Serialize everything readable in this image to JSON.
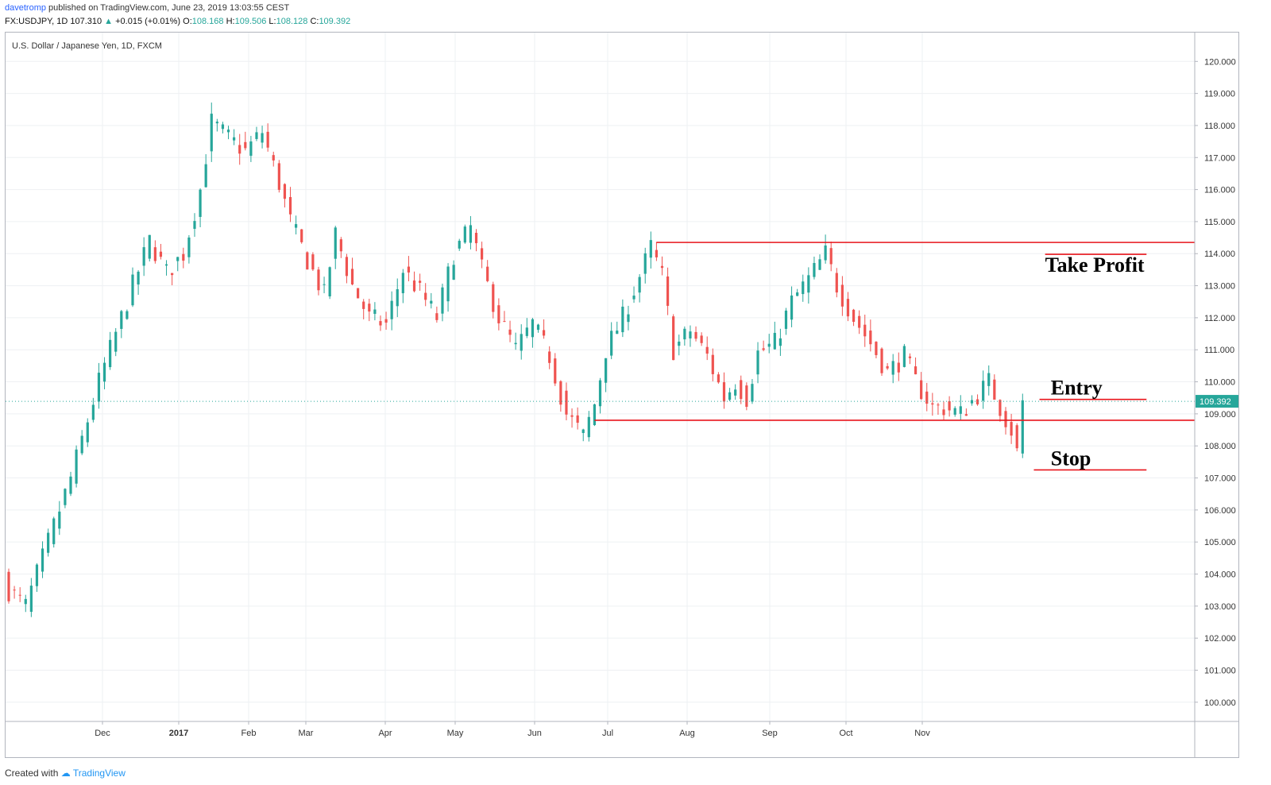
{
  "header": {
    "user": "davetromp",
    "published": "published on TradingView.com, June 23, 2019 13:03:55 CEST",
    "symbol": "FX:USDJPY, 1D",
    "last": "107.310",
    "change": "+0.015 (+0.01%)",
    "open_label": "O:",
    "open": "108.168",
    "high_label": "H:",
    "high": "109.506",
    "low_label": "L:",
    "low": "108.128",
    "close_label": "C:",
    "close": "109.392"
  },
  "footer": {
    "created_with": "Created with",
    "brand": "TradingView"
  },
  "colors": {
    "up": "#26a69a",
    "down": "#ef5350",
    "annotation_line": "#e8141b",
    "grid": "#eef0f3",
    "price_tag": "#26a69a"
  },
  "chart_data": {
    "type": "candlestick",
    "title": "U.S. Dollar / Japanese Yen, 1D, FXCM",
    "ylim": [
      99.4,
      120.9
    ],
    "y_ticks": [
      "120.000",
      "119.000",
      "118.000",
      "117.000",
      "116.000",
      "115.000",
      "114.000",
      "113.000",
      "112.000",
      "111.000",
      "110.000",
      "109.000",
      "108.000",
      "107.000",
      "106.000",
      "105.000",
      "104.000",
      "103.000",
      "102.000",
      "101.000",
      "100.000"
    ],
    "x_ticks": [
      "Dec",
      "2017",
      "Feb",
      "Mar",
      "Apr",
      "May",
      "Jun",
      "Jul",
      "Aug",
      "Sep",
      "Oct",
      "Nov"
    ],
    "current_price_label": "109.392",
    "current_price": 109.392,
    "close_path": [
      {
        "idx": 0,
        "close": 103.5
      },
      {
        "idx": 3,
        "close": 103.0
      },
      {
        "idx": 5,
        "close": 104.0
      },
      {
        "idx": 8,
        "close": 105.5
      },
      {
        "idx": 11,
        "close": 107.0
      },
      {
        "idx": 13,
        "close": 108.2
      },
      {
        "idx": 16,
        "close": 110.0
      },
      {
        "idx": 19,
        "close": 111.5
      },
      {
        "idx": 22,
        "close": 113.0
      },
      {
        "idx": 25,
        "close": 114.4
      },
      {
        "idx": 28,
        "close": 113.4
      },
      {
        "idx": 31,
        "close": 114.0
      },
      {
        "idx": 34,
        "close": 116.0
      },
      {
        "idx": 36,
        "close": 118.1
      },
      {
        "idx": 39,
        "close": 117.6
      },
      {
        "idx": 42,
        "close": 117.2
      },
      {
        "idx": 45,
        "close": 117.8
      },
      {
        "idx": 48,
        "close": 116.2
      },
      {
        "idx": 50,
        "close": 115.0
      },
      {
        "idx": 53,
        "close": 113.8
      },
      {
        "idx": 56,
        "close": 112.7
      },
      {
        "idx": 58,
        "close": 114.6
      },
      {
        "idx": 61,
        "close": 113.0
      },
      {
        "idx": 64,
        "close": 112.0
      },
      {
        "idx": 67,
        "close": 111.8
      },
      {
        "idx": 70,
        "close": 113.5
      },
      {
        "idx": 73,
        "close": 112.8
      },
      {
        "idx": 76,
        "close": 112.0
      },
      {
        "idx": 79,
        "close": 114.0
      },
      {
        "idx": 82,
        "close": 114.8
      },
      {
        "idx": 84,
        "close": 113.5
      },
      {
        "idx": 87,
        "close": 112.0
      },
      {
        "idx": 90,
        "close": 111.0
      },
      {
        "idx": 93,
        "close": 111.8
      },
      {
        "idx": 96,
        "close": 110.8
      },
      {
        "idx": 99,
        "close": 109.0
      },
      {
        "idx": 102,
        "close": 108.3
      },
      {
        "idx": 104,
        "close": 109.3
      },
      {
        "idx": 106,
        "close": 111.0
      },
      {
        "idx": 109,
        "close": 112.0
      },
      {
        "idx": 112,
        "close": 113.3
      },
      {
        "idx": 114,
        "close": 114.2
      },
      {
        "idx": 116,
        "close": 113.3
      },
      {
        "idx": 118,
        "close": 111.0
      },
      {
        "idx": 121,
        "close": 111.6
      },
      {
        "idx": 124,
        "close": 110.8
      },
      {
        "idx": 127,
        "close": 109.5
      },
      {
        "idx": 129,
        "close": 110.0
      },
      {
        "idx": 131,
        "close": 109.5
      },
      {
        "idx": 133,
        "close": 110.9
      },
      {
        "idx": 136,
        "close": 111.2
      },
      {
        "idx": 139,
        "close": 112.5
      },
      {
        "idx": 142,
        "close": 113.2
      },
      {
        "idx": 145,
        "close": 114.0
      },
      {
        "idx": 147,
        "close": 113.0
      },
      {
        "idx": 150,
        "close": 112.0
      },
      {
        "idx": 153,
        "close": 111.2
      },
      {
        "idx": 156,
        "close": 110.3
      },
      {
        "idx": 159,
        "close": 110.8
      },
      {
        "idx": 161,
        "close": 110.0
      },
      {
        "idx": 164,
        "close": 109.2
      },
      {
        "idx": 166,
        "close": 109.2
      },
      {
        "idx": 169,
        "close": 109.0
      },
      {
        "idx": 172,
        "close": 109.6
      },
      {
        "idx": 174,
        "close": 110.0
      },
      {
        "idx": 176,
        "close": 109.2
      },
      {
        "idx": 178,
        "close": 108.5
      },
      {
        "idx": 179,
        "close": 107.8
      },
      {
        "idx": 180,
        "close": 109.39
      }
    ],
    "annotations": {
      "resistance": {
        "price": 114.35
      },
      "support": {
        "price": 108.8
      },
      "take_profit": {
        "label": "Take Profit",
        "price": 113.98
      },
      "entry": {
        "label": "Entry",
        "price": 109.45
      },
      "stop": {
        "label": "Stop",
        "price": 107.25
      }
    }
  }
}
